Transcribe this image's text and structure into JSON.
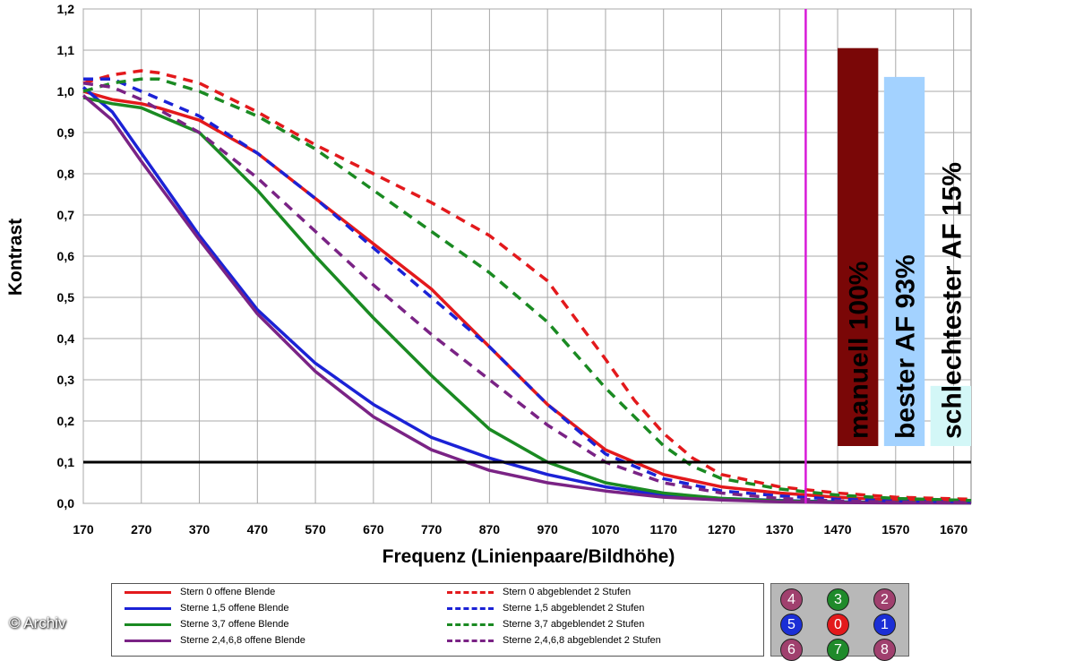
{
  "chart_data": {
    "type": "line",
    "title": "",
    "xlabel": "Frequenz (Linienpaare/Bildhöhe)",
    "ylabel": "Kontrast",
    "xlim": [
      170,
      1700
    ],
    "ylim": [
      0,
      1.2
    ],
    "x_ticks": [
      "170",
      "270",
      "370",
      "470",
      "570",
      "670",
      "770",
      "870",
      "970",
      "1070",
      "1170",
      "1270",
      "1370",
      "1470",
      "1570",
      "1670"
    ],
    "y_ticks": [
      "0,0",
      "0,1",
      "0,2",
      "0,3",
      "0,4",
      "0,5",
      "0,6",
      "0,7",
      "0,8",
      "0,9",
      "1,0",
      "1,1",
      "1,2"
    ],
    "grid": true,
    "reference_line": {
      "y": 0.1
    },
    "vertical_marker": {
      "x": 1415,
      "color": "#d81ad8"
    },
    "series": [
      {
        "name": "Stern 0 offene Blende",
        "color": "#e3191c",
        "style": "solid",
        "x": [
          170,
          220,
          270,
          300,
          370,
          470,
          570,
          670,
          770,
          870,
          970,
          1070,
          1120,
          1170,
          1270,
          1370,
          1470,
          1570,
          1700
        ],
        "y": [
          1.0,
          0.98,
          0.97,
          0.96,
          0.93,
          0.85,
          0.74,
          0.63,
          0.52,
          0.38,
          0.24,
          0.13,
          0.1,
          0.07,
          0.04,
          0.025,
          0.015,
          0.008,
          0.005
        ]
      },
      {
        "name": "Sterne 1,5 offene Blende",
        "color": "#1b22d6",
        "style": "solid",
        "x": [
          170,
          220,
          270,
          370,
          470,
          570,
          670,
          770,
          870,
          970,
          1070,
          1170,
          1270,
          1370,
          1470,
          1570,
          1700
        ],
        "y": [
          1.01,
          0.95,
          0.85,
          0.65,
          0.47,
          0.34,
          0.24,
          0.16,
          0.11,
          0.07,
          0.04,
          0.02,
          0.012,
          0.007,
          0.004,
          0.002,
          0.001
        ]
      },
      {
        "name": "Sterne 3,7 offene Blende",
        "color": "#1a8a22",
        "style": "solid",
        "x": [
          170,
          220,
          270,
          370,
          470,
          570,
          670,
          770,
          870,
          970,
          1070,
          1170,
          1270,
          1370,
          1470,
          1570,
          1700
        ],
        "y": [
          0.985,
          0.97,
          0.96,
          0.9,
          0.76,
          0.6,
          0.45,
          0.31,
          0.18,
          0.1,
          0.05,
          0.025,
          0.012,
          0.006,
          0.003,
          0.002,
          0.001
        ]
      },
      {
        "name": "Sterne 2,4,6,8 offene Blende",
        "color": "#7a2385",
        "style": "solid",
        "x": [
          170,
          220,
          270,
          370,
          470,
          570,
          670,
          770,
          870,
          970,
          1070,
          1170,
          1270,
          1370,
          1470,
          1570,
          1700
        ],
        "y": [
          0.99,
          0.93,
          0.83,
          0.64,
          0.46,
          0.32,
          0.21,
          0.13,
          0.08,
          0.05,
          0.03,
          0.015,
          0.008,
          0.004,
          0.002,
          0.001,
          0.001
        ]
      },
      {
        "name": "Stern 0 abgeblendet 2 Stufen",
        "color": "#e3191c",
        "style": "dashed",
        "x": [
          170,
          220,
          270,
          300,
          370,
          470,
          570,
          670,
          770,
          870,
          970,
          1070,
          1120,
          1170,
          1220,
          1270,
          1370,
          1470,
          1570,
          1700
        ],
        "y": [
          1.02,
          1.04,
          1.05,
          1.045,
          1.02,
          0.95,
          0.87,
          0.8,
          0.73,
          0.65,
          0.54,
          0.35,
          0.25,
          0.17,
          0.11,
          0.07,
          0.04,
          0.025,
          0.015,
          0.01
        ]
      },
      {
        "name": "Sterne 1,5 abgeblendet 2 Stufen",
        "color": "#1b22d6",
        "style": "dashed",
        "x": [
          170,
          220,
          270,
          370,
          470,
          570,
          670,
          770,
          870,
          970,
          1070,
          1170,
          1270,
          1370,
          1470,
          1570,
          1700
        ],
        "y": [
          1.03,
          1.03,
          1.0,
          0.94,
          0.85,
          0.74,
          0.62,
          0.5,
          0.38,
          0.24,
          0.12,
          0.06,
          0.03,
          0.018,
          0.01,
          0.006,
          0.004
        ]
      },
      {
        "name": "Sterne 3,7 abgeblendet 2 Stufen",
        "color": "#1a8a22",
        "style": "dashed",
        "x": [
          170,
          220,
          270,
          300,
          370,
          470,
          570,
          670,
          770,
          870,
          970,
          1070,
          1170,
          1220,
          1270,
          1370,
          1470,
          1570,
          1700
        ],
        "y": [
          1.0,
          1.02,
          1.03,
          1.03,
          1.0,
          0.94,
          0.86,
          0.76,
          0.66,
          0.56,
          0.44,
          0.28,
          0.14,
          0.09,
          0.06,
          0.035,
          0.02,
          0.012,
          0.007
        ]
      },
      {
        "name": "Sterne 2,4,6,8 abgeblendet 2 Stufen",
        "color": "#7a2385",
        "style": "dashed",
        "x": [
          170,
          220,
          270,
          370,
          470,
          570,
          670,
          770,
          870,
          970,
          1070,
          1170,
          1270,
          1370,
          1470,
          1570,
          1700
        ],
        "y": [
          1.02,
          1.01,
          0.98,
          0.9,
          0.79,
          0.66,
          0.53,
          0.41,
          0.3,
          0.19,
          0.1,
          0.05,
          0.025,
          0.012,
          0.006,
          0.003,
          0.002
        ]
      }
    ],
    "bars": [
      {
        "label": "manuell 100%",
        "value": 1.105,
        "x_from": 1470,
        "x_to": 1540,
        "color": "#7a0707"
      },
      {
        "label": "bester AF 93%",
        "value": 1.035,
        "x_from": 1550,
        "x_to": 1620,
        "color": "#a3d2ff"
      },
      {
        "label": "schlechtester AF 15%",
        "value": 0.285,
        "x_from": 1630,
        "x_to": 1700,
        "color": "#d3f7f7"
      }
    ]
  },
  "star_panel": {
    "rows": [
      [
        {
          "label": "4",
          "color": "#a0406e"
        },
        {
          "label": "3",
          "color": "#1f8a2b"
        },
        {
          "label": "2",
          "color": "#a0406e"
        }
      ],
      [
        {
          "label": "5",
          "color": "#1b2fd6"
        },
        {
          "label": "0",
          "color": "#e3191c"
        },
        {
          "label": "1",
          "color": "#1b2fd6"
        }
      ],
      [
        {
          "label": "6",
          "color": "#a0406e"
        },
        {
          "label": "7",
          "color": "#1f8a2b"
        },
        {
          "label": "8",
          "color": "#a0406e"
        }
      ]
    ]
  },
  "credit": "© Archiv"
}
